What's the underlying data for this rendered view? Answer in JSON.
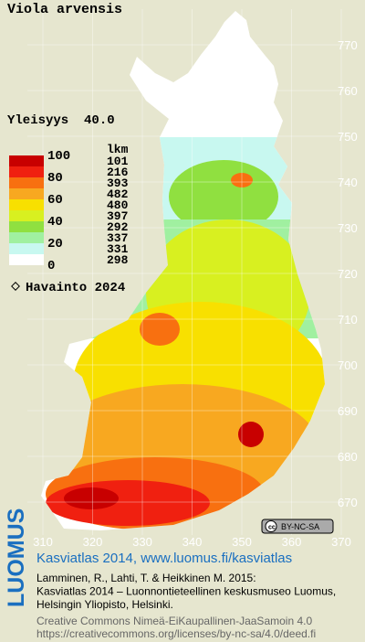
{
  "header": {
    "species": "Viola arvensis",
    "frequency": "Yleisyys  40.0"
  },
  "legend": {
    "scale_labels": [
      "100",
      "80",
      "60",
      "40",
      "20",
      "0"
    ],
    "count_header": "lkm",
    "counts": [
      "101",
      "216",
      "393",
      "482",
      "480",
      "397",
      "292",
      "337",
      "331",
      "298"
    ],
    "colors": [
      "#c80000",
      "#f02010",
      "#f87010",
      "#f8a820",
      "#f8e000",
      "#d8f020",
      "#90e040",
      "#a0f0a0",
      "#c8f8f0",
      "#ffffff"
    ],
    "observation": "Havainto 2024"
  },
  "map": {
    "xticks": [
      310,
      320,
      330,
      340,
      350,
      360,
      370
    ],
    "yticks": [
      770,
      760,
      750,
      740,
      730,
      720,
      710,
      700,
      690,
      680,
      670
    ],
    "license_badge": "BY-NC-SA"
  },
  "footer": {
    "brand": "LUOMUS",
    "title": "Kasviatlas 2014, www.luomus.fi/kasviatlas",
    "citation": [
      "Lamminen, R., Lahti, T. & Heikkinen M. 2015:",
      "Kasviatlas 2014 – Luonnontieteellinen keskusmuseo Luomus,",
      "Helsingin Yliopisto, Helsinki."
    ],
    "license": [
      "Creative Commons Nimeä-EiKaupallinen-JaaSamoin 4.0",
      "https://creativecommons.org/licenses/by-nc-sa/4.0/deed.fi"
    ]
  }
}
